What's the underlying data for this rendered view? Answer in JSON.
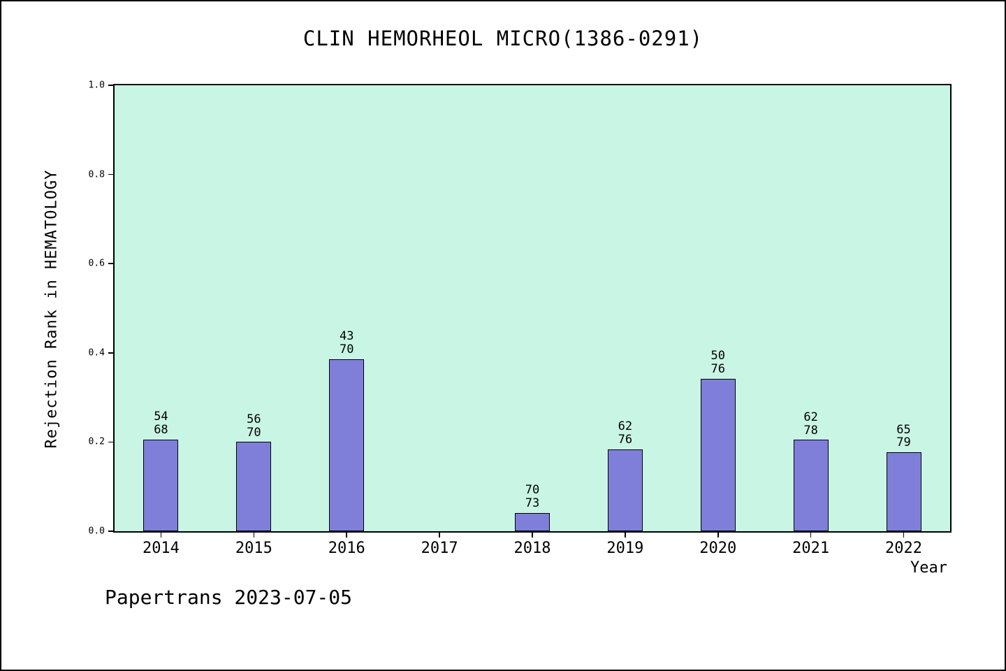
{
  "watermark": {
    "text": "Papertrans 2023-07-05"
  },
  "chart_data": {
    "type": "bar",
    "title": "CLIN HEMORHEOL MICRO(1386-0291)",
    "xlabel": "Year",
    "ylabel": "Rejection Rank in HEMATOLOGY",
    "ylim": [
      0.0,
      1.0
    ],
    "yticks": [
      "0.0",
      "0.2",
      "0.4",
      "0.6",
      "0.8",
      "1.0"
    ],
    "categories": [
      "2014",
      "2015",
      "2016",
      "2017",
      "2018",
      "2019",
      "2020",
      "2021",
      "2022"
    ],
    "values": [
      0.206,
      0.2,
      0.386,
      null,
      0.041,
      0.184,
      0.342,
      0.205,
      0.177
    ],
    "bar_labels": [
      [
        "54",
        "68"
      ],
      [
        "56",
        "70"
      ],
      [
        "43",
        "70"
      ],
      null,
      [
        "70",
        "73"
      ],
      [
        "62",
        "76"
      ],
      [
        "50",
        "76"
      ],
      [
        "62",
        "78"
      ],
      [
        "65",
        "79"
      ]
    ],
    "grid": false,
    "legend": null,
    "colors": {
      "bar_fill": "#7f7fd9",
      "bar_edge": "#000000",
      "plot_background": "#c9f5e5",
      "page_background": "#ffffff"
    }
  }
}
